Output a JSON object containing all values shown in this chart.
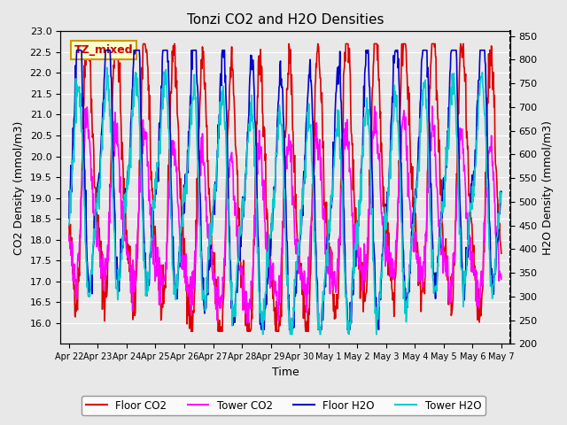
{
  "title": "Tonzi CO2 and H2O Densities",
  "xlabel": "Time",
  "ylabel_left": "CO2 Density (mmol/m3)",
  "ylabel_right": "H2O Density (mmol/m3)",
  "ylim_left": [
    15.5,
    23.0
  ],
  "ylim_right": [
    200,
    860
  ],
  "annotation_text": "TZ_mixed",
  "annotation_color": "#cc0000",
  "annotation_bg": "#ffffcc",
  "annotation_border": "#cc9900",
  "bg_color": "#e8e8e8",
  "legend": [
    "Floor CO2",
    "Tower CO2",
    "Floor H2O",
    "Tower H2O"
  ],
  "legend_colors": [
    "#dd0000",
    "#ff00ff",
    "#0000cc",
    "#00cccc"
  ],
  "line_width": 1.2,
  "xtick_labels": [
    "Apr 22",
    "Apr 23",
    "Apr 24",
    "Apr 25",
    "Apr 26",
    "Apr 27",
    "Apr 28",
    "Apr 29",
    "Apr 30",
    "May 1",
    "May 2",
    "May 3",
    "May 4",
    "May 5",
    "May 6",
    "May 7"
  ],
  "xtick_positions": [
    0,
    1,
    2,
    3,
    4,
    5,
    6,
    7,
    8,
    9,
    10,
    11,
    12,
    13,
    14,
    15
  ],
  "yticks_left": [
    16.0,
    16.5,
    17.0,
    17.5,
    18.0,
    18.5,
    19.0,
    19.5,
    20.0,
    20.5,
    21.0,
    21.5,
    22.0,
    22.5,
    23.0
  ],
  "yticks_right": [
    200,
    250,
    300,
    350,
    400,
    450,
    500,
    550,
    600,
    650,
    700,
    750,
    800,
    850
  ],
  "n_points": 960,
  "days": 15,
  "seed": 42
}
